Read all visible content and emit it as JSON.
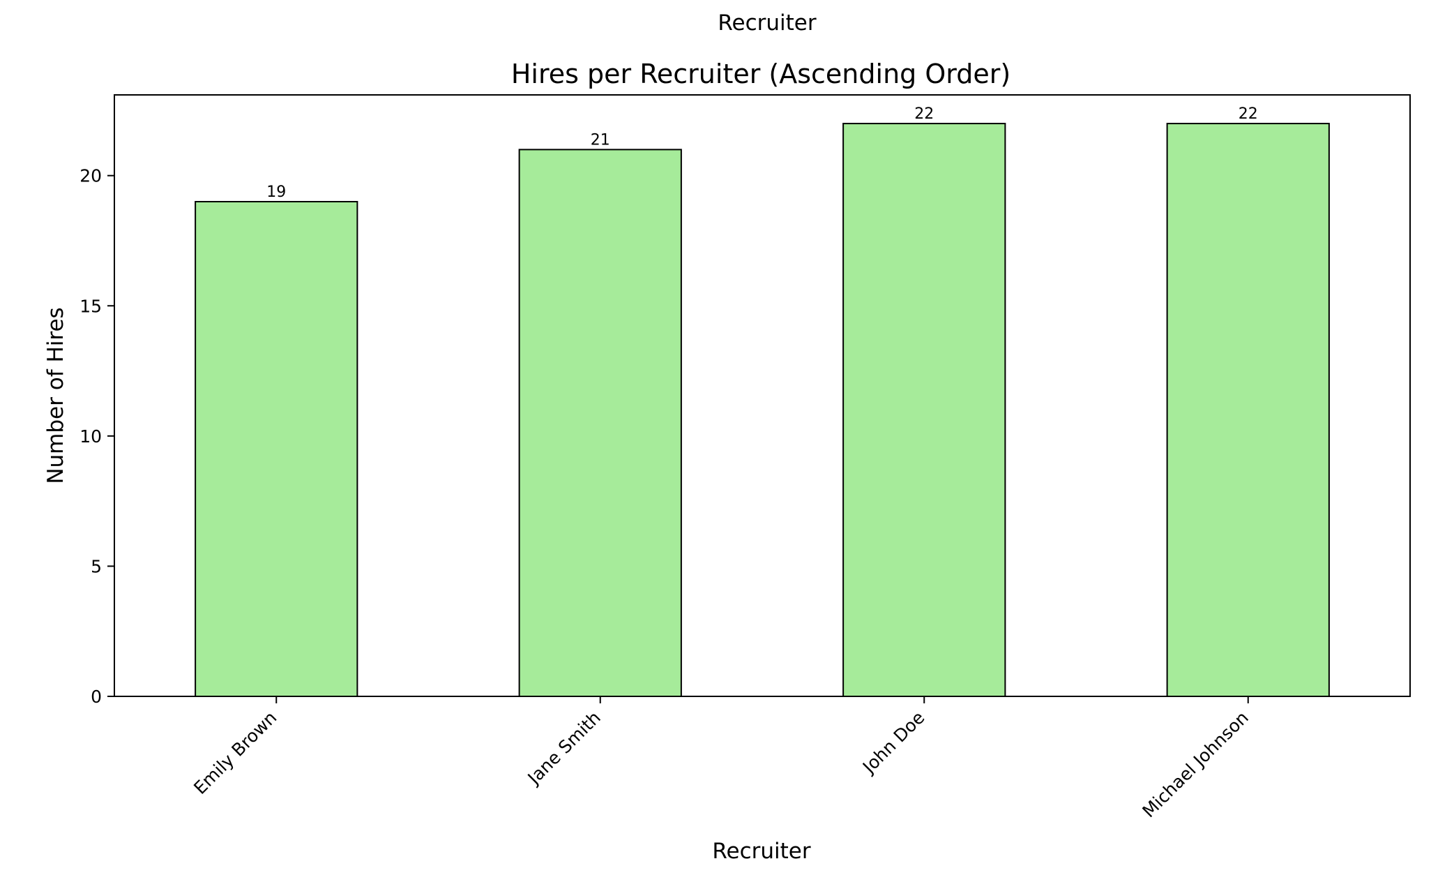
{
  "figure": {
    "top_label": "Recruiter"
  },
  "chart_data": {
    "type": "bar",
    "title": "Hires per Recruiter (Ascending Order)",
    "xlabel": "Recruiter",
    "ylabel": "Number of Hires",
    "categories": [
      "Emily Brown",
      "Jane Smith",
      "John Doe",
      "Michael Johnson"
    ],
    "values": [
      19,
      21,
      22,
      22
    ],
    "data_labels": [
      "19",
      "21",
      "22",
      "22"
    ],
    "ylim": [
      0,
      23.1
    ],
    "yticks": [
      0,
      5,
      10,
      15,
      20
    ],
    "ytick_labels": [
      "0",
      "5",
      "10",
      "15",
      "20"
    ],
    "bar_color": "#a6eb9a",
    "bar_edge_color": "#000000",
    "grid": false,
    "legend": "none"
  }
}
